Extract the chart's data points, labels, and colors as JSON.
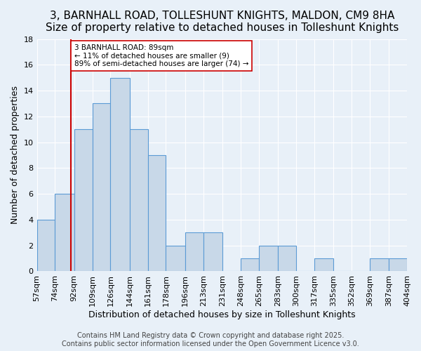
{
  "title": "3, BARNHALL ROAD, TOLLESHUNT KNIGHTS, MALDON, CM9 8HA",
  "subtitle": "Size of property relative to detached houses in Tolleshunt Knights",
  "xlabel": "Distribution of detached houses by size in Tolleshunt Knights",
  "ylabel": "Number of detached properties",
  "bin_edges": [
    57,
    74,
    92,
    109,
    126,
    144,
    161,
    178,
    196,
    213,
    231,
    248,
    265,
    283,
    300,
    317,
    335,
    352,
    369,
    387,
    404
  ],
  "bin_counts": [
    4,
    6,
    11,
    13,
    15,
    11,
    9,
    2,
    3,
    3,
    0,
    1,
    2,
    2,
    0,
    1,
    0,
    0,
    1,
    1
  ],
  "bar_color": "#c8d8e8",
  "bar_edge_color": "#5b9bd5",
  "property_line_x": 89,
  "property_line_color": "#cc0000",
  "annotation_text": "3 BARNHALL ROAD: 89sqm\n← 11% of detached houses are smaller (9)\n89% of semi-detached houses are larger (74) →",
  "annotation_box_color": "#ffffff",
  "annotation_box_edge_color": "#cc0000",
  "ylim": [
    0,
    18
  ],
  "yticks": [
    0,
    2,
    4,
    6,
    8,
    10,
    12,
    14,
    16,
    18
  ],
  "background_color": "#e8f0f8",
  "footer_text": "Contains HM Land Registry data © Crown copyright and database right 2025.\nContains public sector information licensed under the Open Government Licence v3.0.",
  "title_fontsize": 11,
  "subtitle_fontsize": 10,
  "xlabel_fontsize": 9,
  "ylabel_fontsize": 9,
  "tick_fontsize": 8,
  "footer_fontsize": 7
}
